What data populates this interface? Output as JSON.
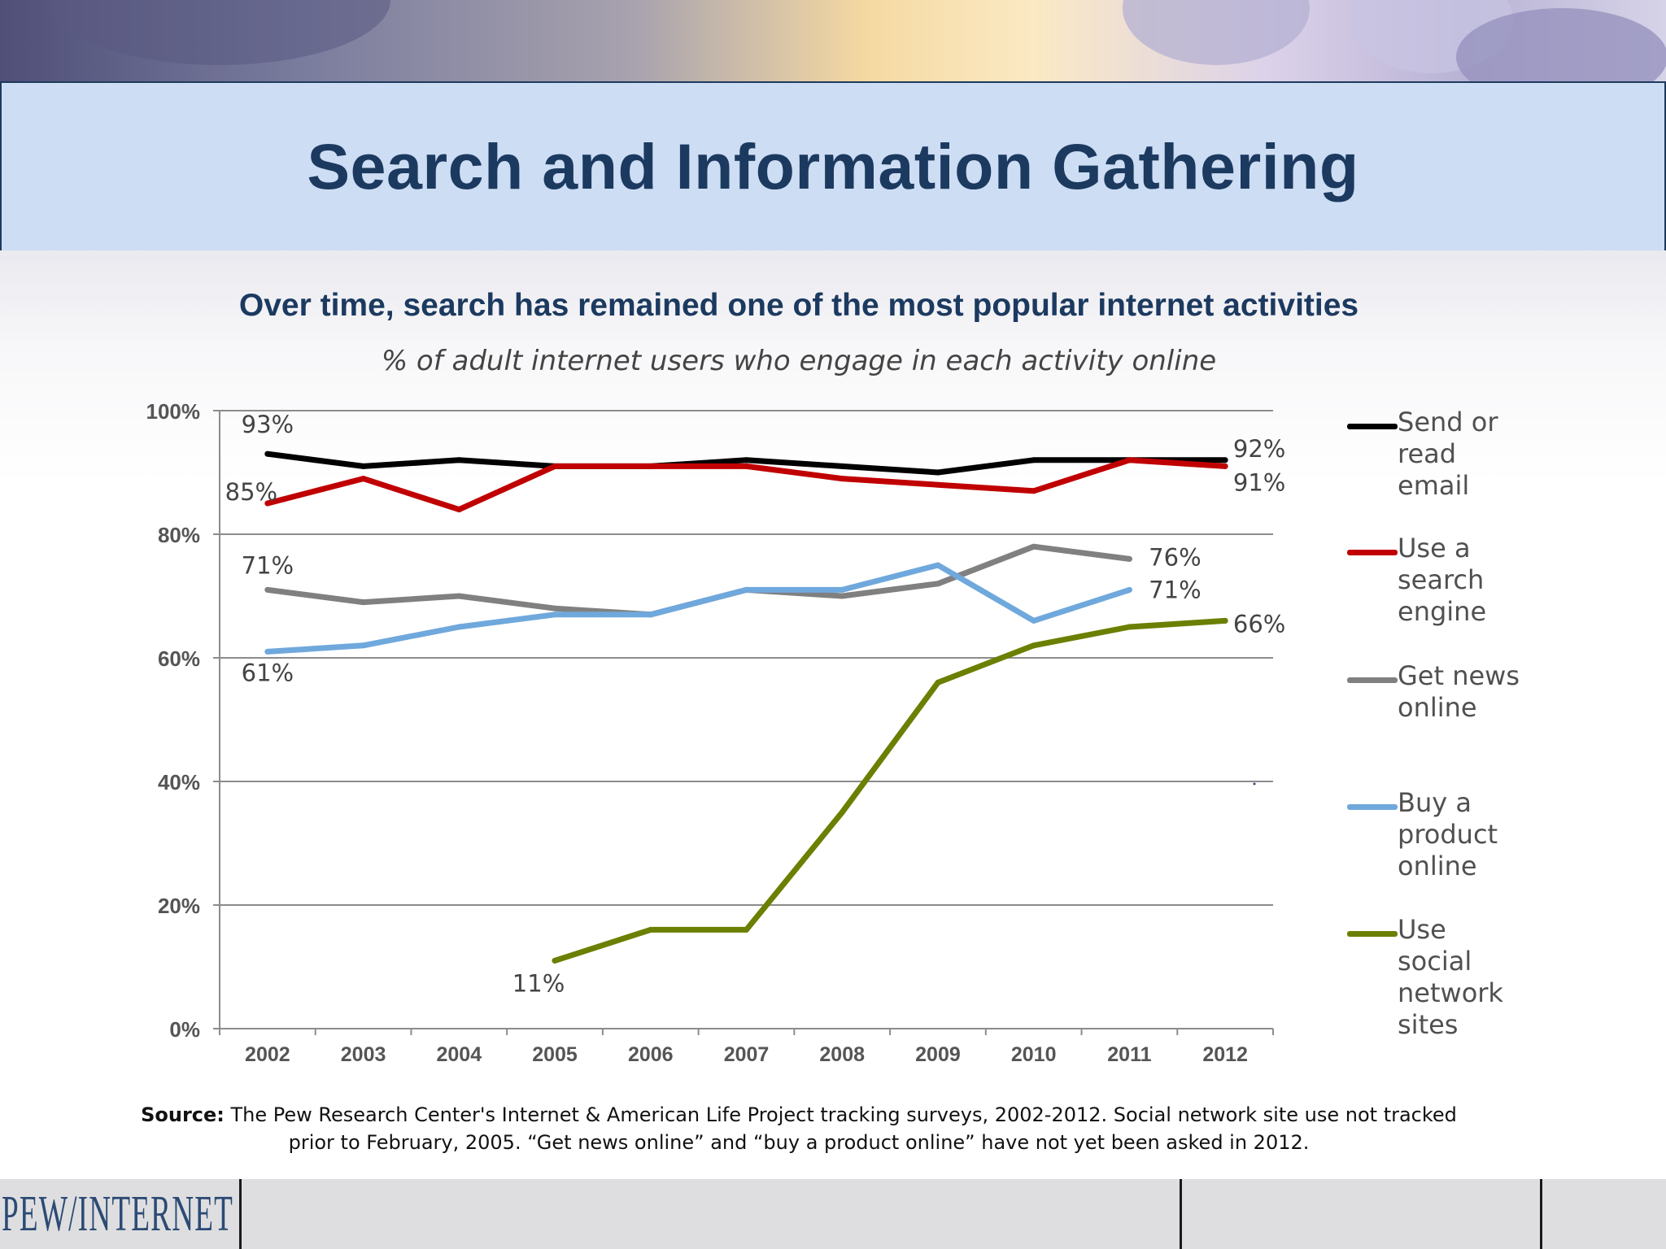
{
  "header": {
    "title": "Search and Information Gathering"
  },
  "chart_data": {
    "type": "line",
    "title": "Over time, search has remained one of the most popular internet activities",
    "subtitle": "% of adult internet users who engage in each activity online",
    "x": [
      "2002",
      "2003",
      "2004",
      "2005",
      "2006",
      "2007",
      "2008",
      "2009",
      "2010",
      "2011",
      "2012"
    ],
    "ylim": [
      0,
      100
    ],
    "yticks": [
      0,
      20,
      40,
      60,
      80,
      100
    ],
    "ytick_labels": [
      "0%",
      "20%",
      "40%",
      "60%",
      "80%",
      "100%"
    ],
    "grid": true,
    "legend_position": "right",
    "series": [
      {
        "name": "Send or read email",
        "color": "#000000",
        "values": [
          93,
          91,
          92,
          91,
          91,
          92,
          91,
          90,
          92,
          92,
          92
        ],
        "labels": [
          {
            "index": 0,
            "text": "93%"
          },
          {
            "index": 10,
            "text": "92%"
          }
        ]
      },
      {
        "name": "Use a search engine",
        "color": "#c00000",
        "values": [
          85,
          89,
          84,
          91,
          91,
          91,
          89,
          88,
          87,
          92,
          91
        ],
        "labels": [
          {
            "index": 0,
            "text": "85%"
          },
          {
            "index": 10,
            "text": "91%"
          }
        ]
      },
      {
        "name": "Get news online",
        "color": "#808080",
        "values": [
          71,
          69,
          70,
          68,
          67,
          71,
          70,
          72,
          78,
          76,
          null
        ],
        "labels": [
          {
            "index": 0,
            "text": "71%"
          },
          {
            "index": 9,
            "text": "76%"
          }
        ]
      },
      {
        "name": "Buy a product online",
        "color": "#6fa8dc",
        "values": [
          61,
          62,
          65,
          67,
          67,
          71,
          71,
          75,
          66,
          71,
          null
        ],
        "labels": [
          {
            "index": 0,
            "text": "61%"
          },
          {
            "index": 9,
            "text": "71%"
          }
        ]
      },
      {
        "name": "Use social network sites",
        "color": "#6b7f00",
        "values": [
          null,
          null,
          null,
          11,
          16,
          16,
          35,
          56,
          62,
          65,
          66
        ],
        "labels": [
          {
            "index": 3,
            "text": "11%"
          },
          {
            "index": 10,
            "text": "66%"
          }
        ]
      }
    ]
  },
  "legend": {
    "items": [
      {
        "lines": [
          "Send or",
          "read",
          "email"
        ]
      },
      {
        "lines": [
          "Use a",
          "search",
          "engine"
        ]
      },
      {
        "lines": [
          "Get news",
          "online"
        ]
      },
      {
        "lines": [
          "Buy a",
          "product",
          "online"
        ]
      },
      {
        "lines": [
          "Use",
          "social",
          "network",
          "sites"
        ]
      }
    ]
  },
  "source": {
    "label": "Source:",
    "text": "The Pew Research Center's Internet & American Life Project tracking surveys, 2002-2012. Social network site use not tracked prior to February, 2005. “Get news online” and “buy a product online” have not yet been asked in 2012."
  },
  "footer": {
    "logo": "PEW/INTERNET"
  }
}
